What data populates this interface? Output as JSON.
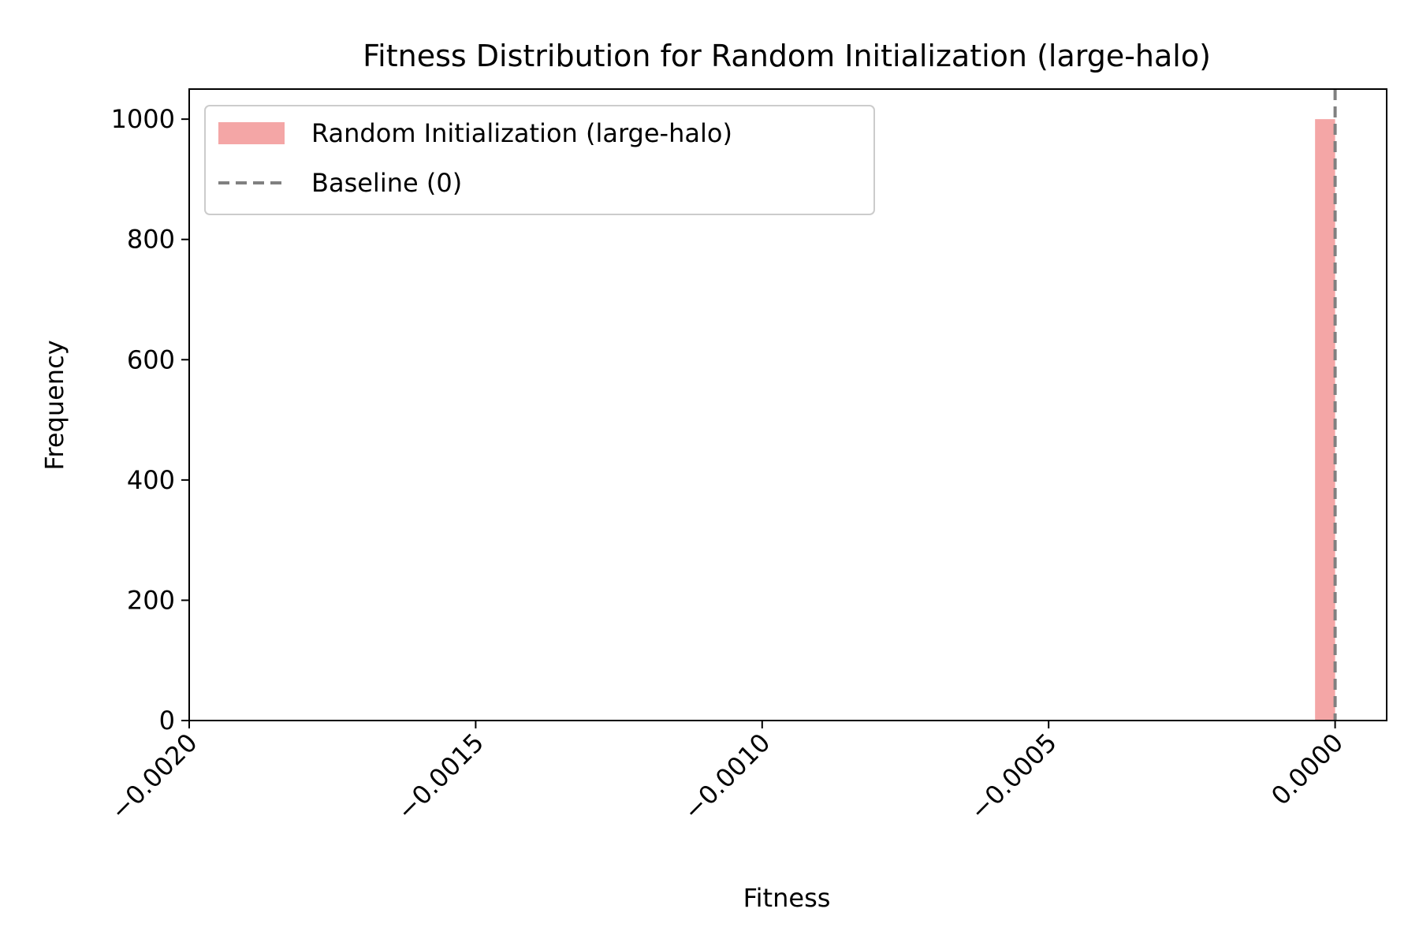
{
  "chart_data": {
    "type": "bar",
    "title": "Fitness Distribution for Random Initialization (large-halo)",
    "xlabel": "Fitness",
    "ylabel": "Frequency",
    "xlim": [
      -0.002,
      9e-05
    ],
    "ylim": [
      0,
      1050
    ],
    "xticks": [
      -0.002,
      -0.0015,
      -0.001,
      -0.0005,
      0.0
    ],
    "xtick_labels": [
      "−0.0020",
      "−0.0015",
      "−0.0010",
      "−0.0005",
      "0.0000"
    ],
    "yticks": [
      0,
      200,
      400,
      600,
      800,
      1000
    ],
    "ytick_labels": [
      "0",
      "200",
      "400",
      "600",
      "800",
      "1000"
    ],
    "grid": false,
    "legend_placement": "top-left",
    "series": [
      {
        "name": "Random Initialization (large-halo)",
        "kind": "histogram",
        "color": "#f4a6a6",
        "bins": [
          {
            "x0": -3.5e-05,
            "x1": 0.0,
            "count": 1000
          }
        ]
      },
      {
        "name": "Baseline (0)",
        "kind": "vline",
        "color": "#808080",
        "style": "dashed",
        "x": 0.0
      }
    ]
  }
}
